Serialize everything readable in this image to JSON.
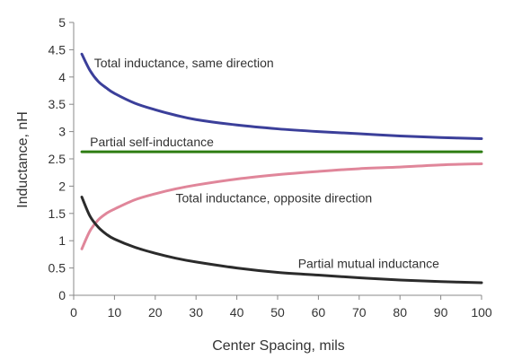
{
  "chart_data": {
    "type": "line",
    "title": "",
    "xlabel": "Center Spacing, mils",
    "ylabel": "Inductance, nH",
    "xlim": [
      0,
      100
    ],
    "ylim": [
      0,
      5
    ],
    "x_ticks": [
      0,
      10,
      20,
      30,
      40,
      50,
      60,
      70,
      80,
      90,
      100
    ],
    "y_ticks": [
      0,
      0.5,
      1,
      1.5,
      2,
      2.5,
      3,
      3.5,
      4,
      4.5,
      5
    ],
    "y_tick_labels": [
      "0",
      "0.5",
      "1",
      "1.5",
      "2",
      "2.5",
      "3",
      "3.5",
      "4",
      "4.5",
      "5"
    ],
    "grid": "none",
    "legend": "none",
    "series": [
      {
        "color": "#3b3f9a",
        "x": [
          2,
          4,
          6,
          8,
          10,
          15,
          20,
          25,
          30,
          40,
          50,
          60,
          70,
          80,
          90,
          100
        ],
        "y": [
          4.42,
          4.12,
          3.92,
          3.8,
          3.7,
          3.52,
          3.4,
          3.3,
          3.22,
          3.12,
          3.05,
          3.0,
          2.96,
          2.92,
          2.89,
          2.87
        ]
      },
      {
        "color": "#2e7d12",
        "x": [
          2,
          100
        ],
        "y": [
          2.63,
          2.63
        ]
      },
      {
        "color": "#e0869a",
        "x": [
          2,
          4,
          6,
          8,
          10,
          15,
          20,
          25,
          30,
          40,
          50,
          60,
          70,
          80,
          90,
          100
        ],
        "y": [
          0.85,
          1.18,
          1.38,
          1.5,
          1.58,
          1.75,
          1.86,
          1.95,
          2.02,
          2.13,
          2.21,
          2.27,
          2.32,
          2.35,
          2.39,
          2.41
        ]
      },
      {
        "color": "#2b2b2b",
        "x": [
          2,
          4,
          6,
          8,
          10,
          15,
          20,
          25,
          30,
          40,
          50,
          60,
          70,
          80,
          90,
          100
        ],
        "y": [
          1.8,
          1.45,
          1.25,
          1.12,
          1.03,
          0.88,
          0.77,
          0.68,
          0.61,
          0.5,
          0.42,
          0.37,
          0.32,
          0.28,
          0.25,
          0.23
        ]
      }
    ],
    "annotations": [
      {
        "text": "Total inductance, same direction",
        "x": 5,
        "y": 4.18
      },
      {
        "text": "Partial self-inductance",
        "x": 4,
        "y": 2.73
      },
      {
        "text": "Total inductance, opposite direction",
        "x": 25,
        "y": 1.7
      },
      {
        "text": "Partial mutual inductance",
        "x": 55,
        "y": 0.5
      }
    ]
  }
}
